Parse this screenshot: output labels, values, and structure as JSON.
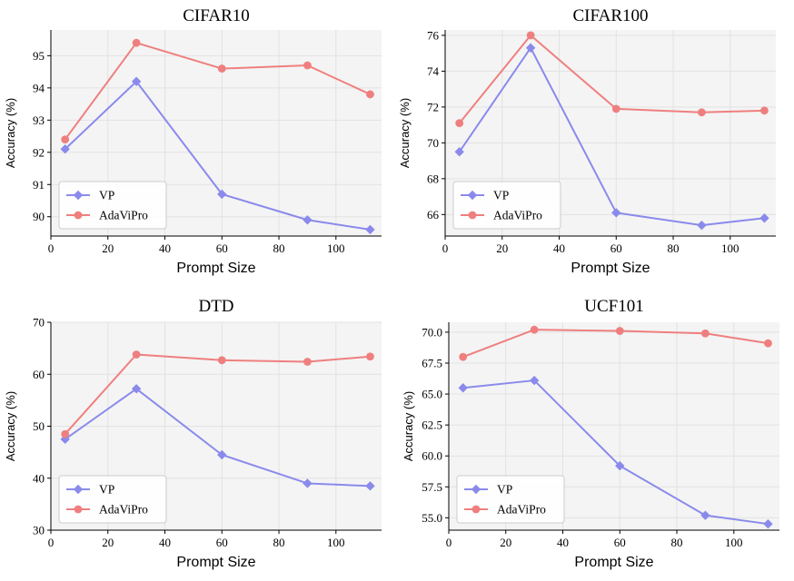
{
  "colors": {
    "vp": "#8a8aec",
    "adavipro": "#ef7f7f",
    "plot_bg": "#f4f4f4",
    "grid": "#e2e2e2"
  },
  "chart_data": [
    {
      "type": "line",
      "title": "CIFAR10",
      "xlabel": "Prompt Size",
      "ylabel": "Accuracy (%)",
      "xlim": [
        0,
        116
      ],
      "ylim": [
        89.4,
        95.8
      ],
      "xticks": [
        0,
        20,
        40,
        60,
        80,
        100
      ],
      "yticks": [
        90,
        91,
        92,
        93,
        94,
        95
      ],
      "ytick_labels": [
        "90",
        "91",
        "92",
        "93",
        "94",
        "95"
      ],
      "x": [
        5,
        30,
        60,
        90,
        112
      ],
      "series": [
        {
          "name": "VP",
          "marker": "diamond",
          "values": [
            92.1,
            94.2,
            90.7,
            89.9,
            89.6
          ]
        },
        {
          "name": "AdaViPro",
          "marker": "circle",
          "values": [
            92.4,
            95.4,
            94.6,
            94.7,
            93.8
          ]
        }
      ],
      "legend": "lower-left"
    },
    {
      "type": "line",
      "title": "CIFAR100",
      "xlabel": "Prompt Size",
      "ylabel": "Accuracy (%)",
      "xlim": [
        0,
        116
      ],
      "ylim": [
        64.8,
        76.3
      ],
      "xticks": [
        0,
        20,
        40,
        60,
        80,
        100
      ],
      "yticks": [
        66,
        68,
        70,
        72,
        74,
        76
      ],
      "ytick_labels": [
        "66",
        "68",
        "70",
        "72",
        "74",
        "76"
      ],
      "x": [
        5,
        30,
        60,
        90,
        112
      ],
      "series": [
        {
          "name": "VP",
          "marker": "diamond",
          "values": [
            69.5,
            75.3,
            66.1,
            65.4,
            65.8
          ]
        },
        {
          "name": "AdaViPro",
          "marker": "circle",
          "values": [
            71.1,
            76.0,
            71.9,
            71.7,
            71.8
          ]
        }
      ],
      "legend": "lower-left"
    },
    {
      "type": "line",
      "title": "DTD",
      "xlabel": "Prompt Size",
      "ylabel": "Accuracy (%)",
      "xlim": [
        0,
        116
      ],
      "ylim": [
        30,
        70
      ],
      "xticks": [
        0,
        20,
        40,
        60,
        80,
        100
      ],
      "yticks": [
        30,
        40,
        50,
        60,
        70
      ],
      "ytick_labels": [
        "30",
        "40",
        "50",
        "60",
        "70"
      ],
      "x": [
        5,
        30,
        60,
        90,
        112
      ],
      "series": [
        {
          "name": "VP",
          "marker": "diamond",
          "values": [
            47.5,
            57.2,
            44.5,
            39.0,
            38.5
          ]
        },
        {
          "name": "AdaViPro",
          "marker": "circle",
          "values": [
            48.5,
            63.8,
            62.7,
            62.4,
            63.4
          ]
        }
      ],
      "legend": "lower-left"
    },
    {
      "type": "line",
      "title": "UCF101",
      "xlabel": "Prompt Size",
      "ylabel": "Accuracy (%)",
      "xlim": [
        0,
        116
      ],
      "ylim": [
        54.0,
        70.8
      ],
      "xticks": [
        0,
        20,
        40,
        60,
        80,
        100
      ],
      "yticks": [
        55.0,
        57.5,
        60.0,
        62.5,
        65.0,
        67.5,
        70.0
      ],
      "ytick_labels": [
        "55.0",
        "57.5",
        "60.0",
        "62.5",
        "65.0",
        "67.5",
        "70.0"
      ],
      "x": [
        5,
        30,
        60,
        90,
        112
      ],
      "series": [
        {
          "name": "VP",
          "marker": "diamond",
          "values": [
            65.5,
            66.1,
            59.2,
            55.2,
            54.5
          ]
        },
        {
          "name": "AdaViPro",
          "marker": "circle",
          "values": [
            68.0,
            70.2,
            70.1,
            69.9,
            69.1
          ]
        }
      ],
      "legend": "lower-left"
    }
  ]
}
